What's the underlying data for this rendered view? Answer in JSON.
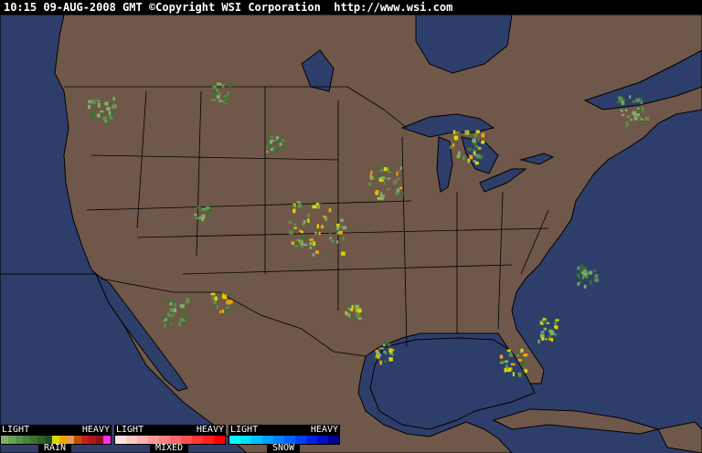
{
  "header": {
    "timestamp": "10:15 09-AUG-2008 GMT",
    "copyright": "©Copyright WSI Corporation",
    "url": "http://www.wsi.com"
  },
  "colors": {
    "ocean": "#2e3e6b",
    "land": "#6f5849",
    "borders": "#000000"
  },
  "legends": [
    {
      "light": "LIGHT",
      "heavy": "HEAVY",
      "name": "RAIN",
      "colors": [
        "#7fb06a",
        "#6aa059",
        "#5a9049",
        "#4a803d",
        "#3d7033",
        "#2f6028",
        "#234f1e",
        "#d8d800",
        "#f0a800",
        "#e09a60",
        "#c05000",
        "#c82020",
        "#b01818",
        "#901020",
        "#ff30e0"
      ]
    },
    {
      "light": "LIGHT",
      "heavy": "HEAVY",
      "name": "MIXED",
      "colors": [
        "#ffe0e0",
        "#ffc8c8",
        "#ffb0b0",
        "#ff9898",
        "#ff8080",
        "#ff6868",
        "#ff5050",
        "#ff3838",
        "#ff2020",
        "#ff0000"
      ]
    },
    {
      "light": "LIGHT",
      "heavy": "HEAVY",
      "name": "SNOW",
      "colors": [
        "#00ffff",
        "#00e0ff",
        "#00c0ff",
        "#00a0ff",
        "#0080ff",
        "#0060ff",
        "#0040f0",
        "#0020e0",
        "#0010c0",
        "#000090"
      ]
    }
  ]
}
